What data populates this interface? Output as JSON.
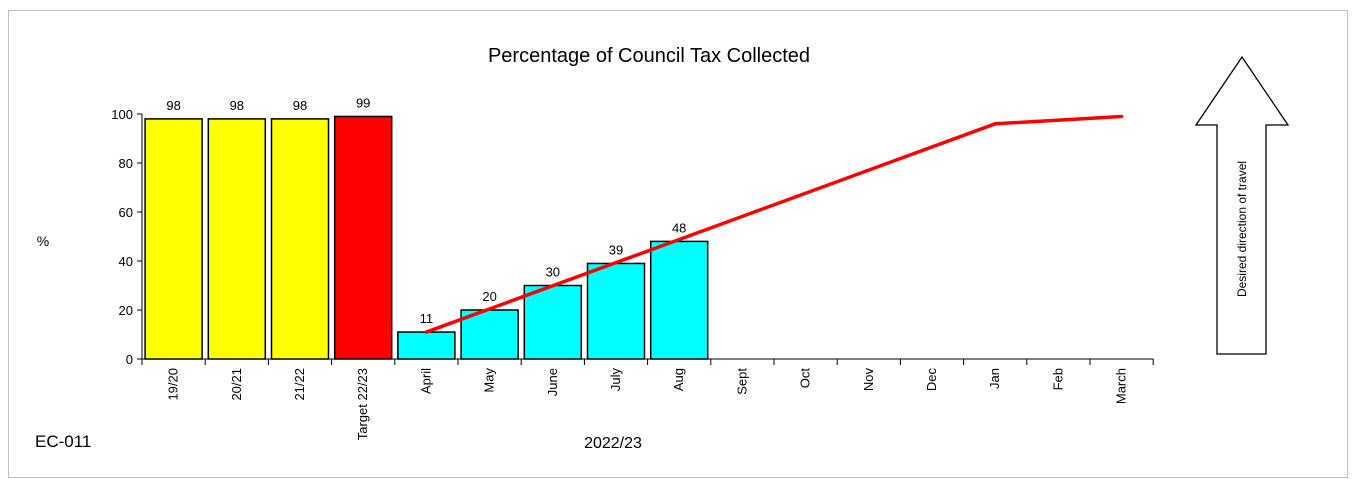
{
  "chart_data": {
    "type": "bar",
    "title": "Percentage of Council Tax Collected",
    "ylabel": "%",
    "xlabel": "2022/23",
    "ylim": [
      0,
      100
    ],
    "yticks": [
      0,
      20,
      40,
      60,
      80,
      100
    ],
    "categories": [
      "19/20",
      "20/21",
      "21/22",
      "Target 22/23",
      "April",
      "May",
      "June",
      "July",
      "Aug",
      "Sept",
      "Oct",
      "Nov",
      "Dec",
      "Jan",
      "Feb",
      "March"
    ],
    "bars": [
      {
        "category": "19/20",
        "value": 98,
        "label": "98",
        "color": "#ffff00"
      },
      {
        "category": "20/21",
        "value": 98,
        "label": "98",
        "color": "#ffff00"
      },
      {
        "category": "21/22",
        "value": 98,
        "label": "98",
        "color": "#ffff00"
      },
      {
        "category": "Target 22/23",
        "value": 99,
        "label": "99",
        "color": "#ff0000"
      },
      {
        "category": "April",
        "value": 11,
        "label": "11",
        "color": "#00ffff"
      },
      {
        "category": "May",
        "value": 20,
        "label": "20",
        "color": "#00ffff"
      },
      {
        "category": "June",
        "value": 30,
        "label": "30",
        "color": "#00ffff"
      },
      {
        "category": "July",
        "value": 39,
        "label": "39",
        "color": "#00ffff"
      },
      {
        "category": "Aug",
        "value": 48,
        "label": "48",
        "color": "#00ffff"
      }
    ],
    "line": {
      "color": "#ff0000",
      "points": [
        {
          "category": "April",
          "value": 11
        },
        {
          "category": "Jan",
          "value": 96
        },
        {
          "category": "March",
          "value": 99
        }
      ]
    },
    "grid": false,
    "legend": "none"
  },
  "page": {
    "chart_code": "EC-011",
    "arrow_label": "Desired direction of travel"
  }
}
